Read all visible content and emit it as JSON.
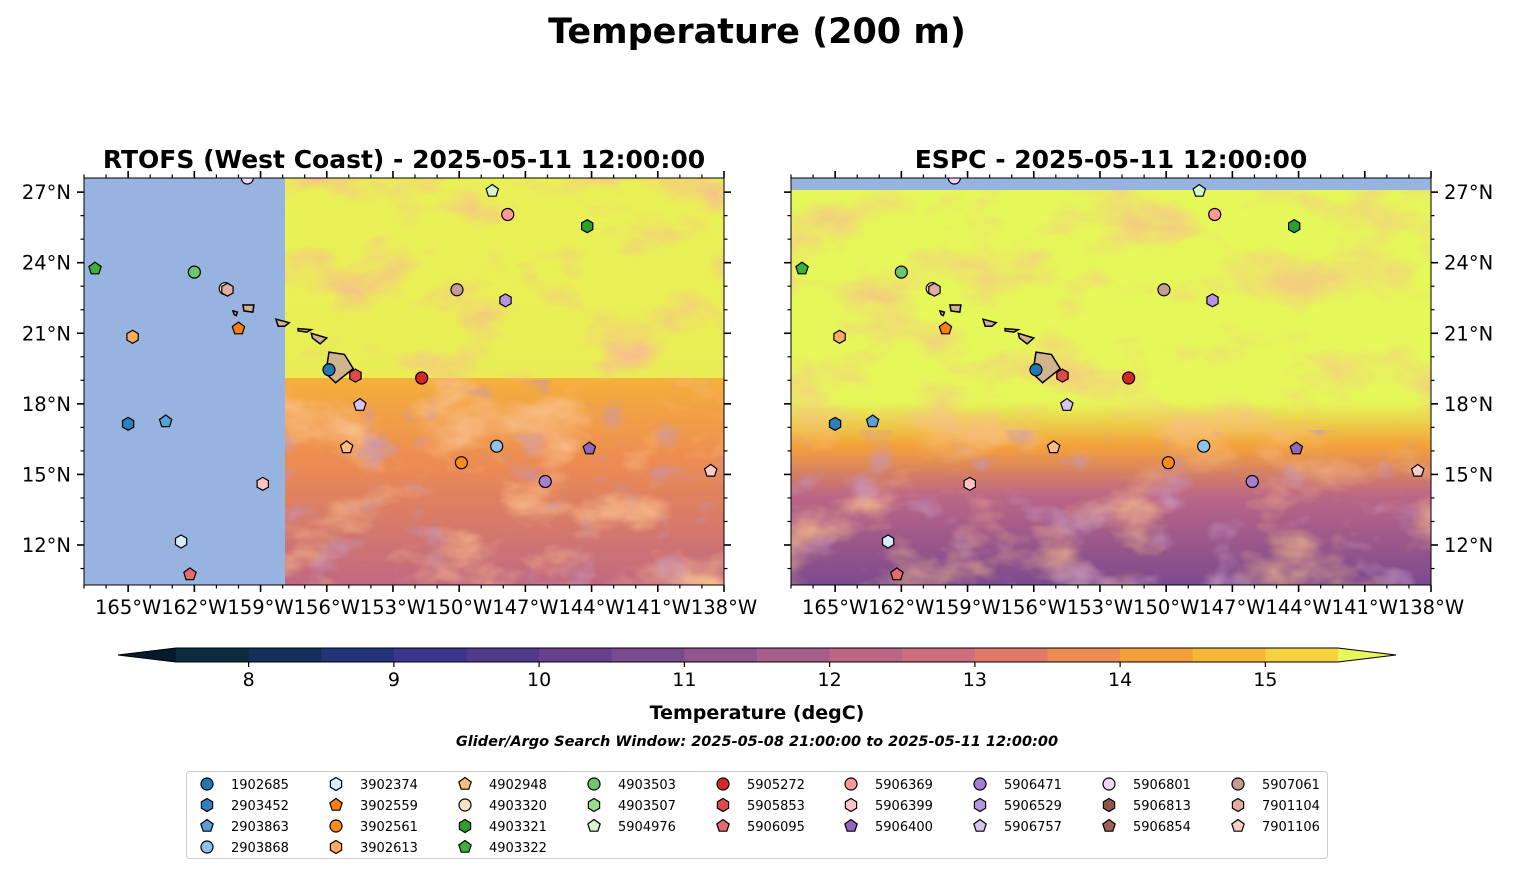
{
  "figure": {
    "title": "Temperature (200 m)",
    "colorbar_label": "Temperature (degC)",
    "subtitle": "Glider/Argo Search Window: 2025-05-08 21:00:00 to 2025-05-11 12:00:00"
  },
  "panels": [
    {
      "title": "RTOFS (West Coast) - 2025-05-11 12:00:00"
    },
    {
      "title": "ESPC - 2025-05-11 12:00:00"
    }
  ],
  "axes": {
    "lon_ticks": [
      "165°W",
      "162°W",
      "159°W",
      "156°W",
      "153°W",
      "150°W",
      "147°W",
      "144°W",
      "141°W",
      "138°W"
    ],
    "lat_ticks": [
      "27°N",
      "24°N",
      "21°N",
      "18°N",
      "15°N",
      "12°N"
    ],
    "lon_range": [
      -167,
      -138
    ],
    "lat_range": [
      10.3,
      27.6
    ]
  },
  "colorbar": {
    "range": [
      7.5,
      15.5
    ],
    "ticks": [
      "8",
      "9",
      "10",
      "11",
      "12",
      "13",
      "14",
      "15"
    ],
    "colors": [
      "#0e2a3e",
      "#152e5c",
      "#24337a",
      "#3a368b",
      "#503a8c",
      "#66408d",
      "#7b4a8e",
      "#91558f",
      "#a65f8d",
      "#bc6686",
      "#cf6e7c",
      "#e0796a",
      "#ec8b52",
      "#f4a03a",
      "#f7b736",
      "#f6d23e"
    ],
    "under_color": "#08192b",
    "over_color": "#e6f75a"
  },
  "legend": {
    "columns": [
      [
        {
          "id": "1902685",
          "marker": "circle",
          "color": "#1f77b4"
        },
        {
          "id": "2903452",
          "marker": "hexagon",
          "color": "#2e7fc0"
        },
        {
          "id": "2903863",
          "marker": "pentagon",
          "color": "#5a9fd6"
        },
        {
          "id": "2903868",
          "marker": "circle",
          "color": "#8ec2ec"
        }
      ],
      [
        {
          "id": "3902374",
          "marker": "hexagon",
          "color": "#d6ecfb"
        },
        {
          "id": "3902559",
          "marker": "pentagon",
          "color": "#ff7f0e"
        },
        {
          "id": "3902561",
          "marker": "circle",
          "color": "#ff8c1a"
        },
        {
          "id": "3902613",
          "marker": "hexagon",
          "color": "#ffad5c"
        }
      ],
      [
        {
          "id": "4902948",
          "marker": "pentagon",
          "color": "#ffbe80"
        },
        {
          "id": "4903320",
          "marker": "circle",
          "color": "#ffe0c2"
        },
        {
          "id": "4903321",
          "marker": "hexagon",
          "color": "#2ca02c"
        },
        {
          "id": "4903322",
          "marker": "pentagon",
          "color": "#3bb33b"
        }
      ],
      [
        {
          "id": "4903503",
          "marker": "circle",
          "color": "#6cc66c"
        },
        {
          "id": "4903507",
          "marker": "hexagon",
          "color": "#98df8a"
        },
        {
          "id": "5904976",
          "marker": "pentagon",
          "color": "#d4f7cf"
        }
      ],
      [
        {
          "id": "5905272",
          "marker": "circle",
          "color": "#d62728"
        },
        {
          "id": "5905853",
          "marker": "hexagon",
          "color": "#dd4a4a"
        },
        {
          "id": "5906095",
          "marker": "pentagon",
          "color": "#e86b6b"
        }
      ],
      [
        {
          "id": "5906369",
          "marker": "circle",
          "color": "#ff9896"
        },
        {
          "id": "5906399",
          "marker": "hexagon",
          "color": "#ffc4c2"
        },
        {
          "id": "5906400",
          "marker": "pentagon",
          "color": "#9467bd"
        }
      ],
      [
        {
          "id": "5906471",
          "marker": "circle",
          "color": "#a580cf"
        },
        {
          "id": "5906529",
          "marker": "hexagon",
          "color": "#b694e0"
        },
        {
          "id": "5906757",
          "marker": "pentagon",
          "color": "#d8c2f2"
        }
      ],
      [
        {
          "id": "5906801",
          "marker": "circle",
          "color": "#efd6fb"
        },
        {
          "id": "5906813",
          "marker": "hexagon",
          "color": "#8c564b"
        },
        {
          "id": "5906854",
          "marker": "pentagon",
          "color": "#9c6456"
        }
      ],
      [
        {
          "id": "5907061",
          "marker": "circle",
          "color": "#c49c94"
        },
        {
          "id": "7901104",
          "marker": "hexagon",
          "color": "#e0ada0"
        },
        {
          "id": "7901106",
          "marker": "pentagon",
          "color": "#f7cfc6"
        }
      ]
    ]
  },
  "floats": [
    {
      "id": "1902685",
      "lon": -155.9,
      "lat": 19.45
    },
    {
      "id": "2903452",
      "lon": -165.0,
      "lat": 17.15
    },
    {
      "id": "2903863",
      "lon": -163.3,
      "lat": 17.25
    },
    {
      "id": "2903868",
      "lon": -148.3,
      "lat": 16.2
    },
    {
      "id": "3902374",
      "lon": -162.6,
      "lat": 12.15
    },
    {
      "id": "3902559",
      "lon": -160.0,
      "lat": 21.2
    },
    {
      "id": "3902561",
      "lon": -149.9,
      "lat": 15.5
    },
    {
      "id": "3902613",
      "lon": -164.8,
      "lat": 20.85
    },
    {
      "id": "4902948",
      "lon": -155.1,
      "lat": 16.15
    },
    {
      "id": "4903320",
      "lon": -160.6,
      "lat": 22.9
    },
    {
      "id": "4903321",
      "lon": -144.2,
      "lat": 25.55
    },
    {
      "id": "4903322",
      "lon": -166.5,
      "lat": 23.75
    },
    {
      "id": "4903503",
      "lon": -162.0,
      "lat": 23.6
    },
    {
      "id": "5904976",
      "lon": -148.5,
      "lat": 27.05
    },
    {
      "id": "5905272",
      "lon": -151.7,
      "lat": 19.1
    },
    {
      "id": "5905853",
      "lon": -154.7,
      "lat": 19.2
    },
    {
      "id": "5906095",
      "lon": -162.2,
      "lat": 10.75
    },
    {
      "id": "5906369",
      "lon": -147.8,
      "lat": 26.05
    },
    {
      "id": "5906399",
      "lon": -158.9,
      "lat": 14.6
    },
    {
      "id": "5906400",
      "lon": -144.1,
      "lat": 16.1
    },
    {
      "id": "5906471",
      "lon": -146.1,
      "lat": 14.7
    },
    {
      "id": "5906529",
      "lon": -147.9,
      "lat": 22.4
    },
    {
      "id": "5906757",
      "lon": -154.5,
      "lat": 17.95
    },
    {
      "id": "5906801",
      "lon": -159.6,
      "lat": 27.6
    },
    {
      "id": "5907061",
      "lon": -150.1,
      "lat": 22.85
    },
    {
      "id": "7901104",
      "lon": -160.5,
      "lat": 22.85
    },
    {
      "id": "7901106",
      "lon": -138.6,
      "lat": 15.15
    }
  ]
}
